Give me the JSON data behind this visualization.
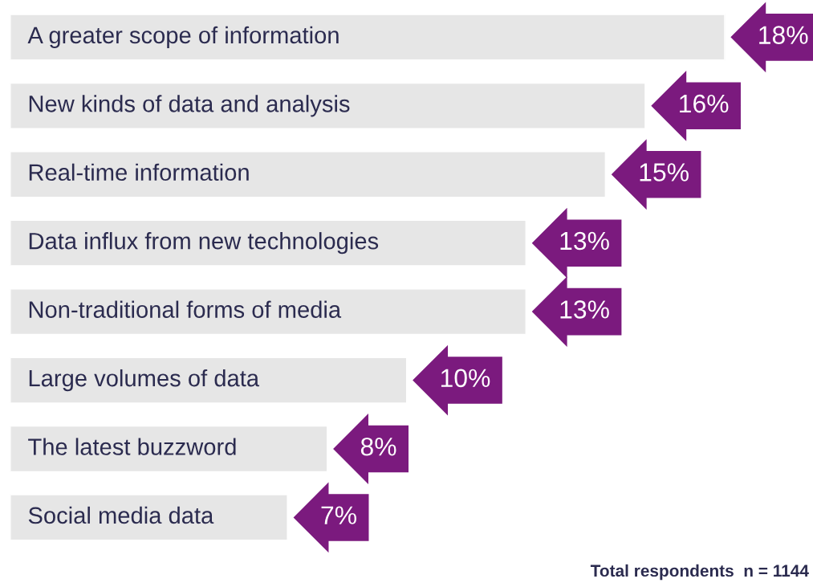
{
  "chart_data": {
    "type": "bar",
    "orientation": "horizontal",
    "categories": [
      "A greater scope of information",
      "New kinds of data and analysis",
      "Real-time information",
      "Data influx from new technologies",
      "Non-traditional forms of media",
      "Large volumes of data",
      "The latest buzzword",
      "Social media data"
    ],
    "values": [
      18,
      16,
      15,
      13,
      13,
      10,
      8,
      7
    ],
    "value_labels": [
      "18%",
      "16%",
      "15%",
      "13%",
      "13%",
      "10%",
      "8%",
      "7%"
    ],
    "color": "#e6e6e6",
    "annotations": [
      "Total respondents  n = 1144"
    ]
  }
}
